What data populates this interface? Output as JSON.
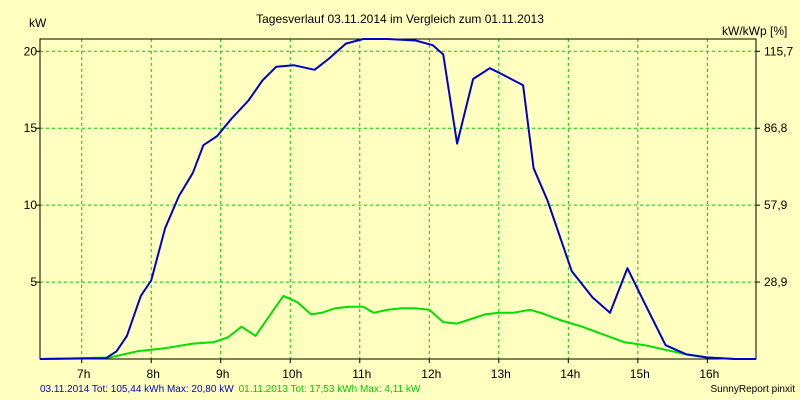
{
  "chart_data": {
    "type": "line",
    "title": "Tagesverlauf 03.11.2014 im Vergleich zum 01.11.2013",
    "ylabel_left": "kW",
    "ylabel_right": "kW/kWp [%]",
    "ylim": [
      0,
      20.8
    ],
    "xlim": [
      6.4,
      16.7
    ],
    "x_ticks": [
      7,
      8,
      9,
      10,
      11,
      12,
      13,
      14,
      15,
      16
    ],
    "x_tick_labels": [
      "7h",
      "8h",
      "9h",
      "10h",
      "11h",
      "12h",
      "13h",
      "14h",
      "15h",
      "16h"
    ],
    "y_ticks": [
      5,
      10,
      15,
      20
    ],
    "y_tick_labels": [
      "5",
      "10",
      "15",
      "20"
    ],
    "y2_ticks": [
      5,
      10,
      15,
      20
    ],
    "y2_tick_labels": [
      "28,9",
      "57,9",
      "86,8",
      "115,7"
    ],
    "grid": true,
    "series": [
      {
        "name": "03.11.2014",
        "color": "#0000cc",
        "x": [
          6.4,
          7.35,
          7.5,
          7.65,
          7.85,
          8.0,
          8.2,
          8.4,
          8.6,
          8.75,
          8.95,
          9.15,
          9.4,
          9.6,
          9.8,
          10.05,
          10.35,
          10.55,
          10.8,
          11.05,
          11.4,
          11.8,
          12.05,
          12.2,
          12.4,
          12.63,
          12.87,
          13.05,
          13.35,
          13.5,
          13.7,
          14.05,
          14.35,
          14.6,
          14.85,
          15.1,
          15.4,
          15.7,
          16.0,
          16.2,
          16.4,
          16.7
        ],
        "y": [
          0.0,
          0.05,
          0.5,
          1.5,
          4.1,
          5.1,
          8.5,
          10.6,
          12.1,
          13.9,
          14.5,
          15.6,
          16.8,
          18.1,
          19.0,
          19.1,
          18.8,
          19.5,
          20.5,
          20.8,
          20.8,
          20.7,
          20.4,
          19.8,
          14.0,
          18.2,
          18.9,
          18.5,
          17.8,
          12.4,
          10.3,
          5.7,
          4.0,
          3.0,
          5.9,
          3.6,
          0.9,
          0.3,
          0.1,
          0.05,
          0.0,
          0.0
        ]
      },
      {
        "name": "01.11.2013",
        "color": "#00e000",
        "x": [
          6.4,
          7.4,
          7.8,
          8.2,
          8.6,
          8.9,
          9.1,
          9.3,
          9.5,
          9.7,
          9.9,
          10.1,
          10.3,
          10.45,
          10.65,
          10.85,
          11.05,
          11.2,
          11.4,
          11.6,
          11.8,
          12.0,
          12.2,
          12.4,
          12.6,
          12.8,
          13.0,
          13.2,
          13.45,
          13.6,
          13.9,
          14.2,
          14.5,
          14.8,
          15.1,
          15.4,
          15.7,
          16.0,
          16.2,
          16.4,
          16.7
        ],
        "y": [
          0.0,
          0.1,
          0.5,
          0.7,
          1.0,
          1.1,
          1.4,
          2.1,
          1.5,
          2.8,
          4.1,
          3.7,
          2.9,
          3.0,
          3.3,
          3.4,
          3.4,
          3.0,
          3.2,
          3.3,
          3.3,
          3.2,
          2.4,
          2.3,
          2.6,
          2.9,
          3.0,
          3.0,
          3.2,
          3.0,
          2.5,
          2.1,
          1.6,
          1.1,
          0.9,
          0.6,
          0.3,
          0.1,
          0.05,
          0.0,
          0.0
        ]
      }
    ]
  },
  "footer": {
    "series1_text": "03.11.2014 Tot: 105,44 kWh Max: 20,80 kW",
    "series2_text": "01.11.2013 Tot: 17,53 kWh Max: 4,11 kW",
    "brand": "SunnyReport pinxit"
  }
}
